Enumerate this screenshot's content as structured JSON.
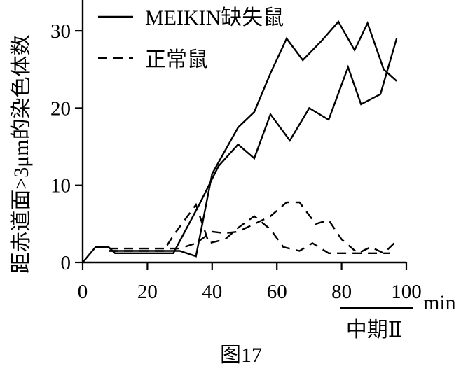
{
  "chart_data": {
    "type": "line",
    "ylabel": "距赤道面>3μm的染色体数",
    "xunit": "min",
    "xlim": [
      0,
      100
    ],
    "ylim": [
      0,
      34
    ],
    "xticks": [
      0,
      20,
      40,
      60,
      80,
      100
    ],
    "yticks": [
      0,
      10,
      20,
      30
    ],
    "legend": {
      "position": "top-left",
      "entries": [
        {
          "label": "MEIKIN缺失鼠",
          "style": "solid"
        },
        {
          "label": "正常鼠",
          "style": "dashed"
        }
      ]
    },
    "phase_bracket": {
      "label": "中期Ⅱ",
      "x_range": [
        80,
        100
      ]
    },
    "caption": "图17",
    "series": [
      {
        "group": "MEIKIN缺失鼠",
        "style": "solid",
        "x": [
          0,
          4,
          8,
          10,
          16,
          22,
          28,
          36,
          42,
          48,
          53,
          58,
          64,
          70,
          76,
          82,
          86,
          92,
          97
        ],
        "y": [
          0,
          2,
          2,
          1.2,
          1.2,
          1.2,
          1.2,
          7.5,
          12.5,
          15.3,
          13.5,
          19.2,
          15.8,
          20.0,
          18.5,
          25.3,
          20.5,
          21.8,
          29.0
        ]
      },
      {
        "group": "MEIKIN缺失鼠",
        "style": "solid",
        "x": [
          8,
          16,
          22,
          30,
          35,
          40,
          48,
          53,
          58,
          63,
          68,
          74,
          79,
          84,
          88,
          93,
          97
        ],
        "y": [
          1.5,
          1.5,
          1.5,
          1.5,
          0.8,
          11.5,
          17.5,
          19.5,
          24.5,
          29.0,
          26.2,
          28.8,
          31.2,
          27.5,
          31.0,
          25.0,
          23.5
        ]
      },
      {
        "group": "正常鼠",
        "style": "dashed",
        "x": [
          8,
          16,
          25,
          28,
          35,
          39,
          44,
          48,
          53,
          58,
          62,
          67,
          71,
          76,
          84,
          90,
          95
        ],
        "y": [
          1.5,
          1.5,
          1.5,
          3.5,
          7.5,
          2.5,
          3.0,
          4.5,
          6.0,
          4.3,
          2.0,
          1.5,
          2.5,
          1.2,
          1.2,
          1.2,
          1.2
        ]
      },
      {
        "group": "正常鼠",
        "style": "dashed",
        "x": [
          8,
          16,
          25,
          30,
          35,
          40,
          44,
          48,
          53,
          58,
          63,
          67,
          72,
          76,
          80,
          85,
          89,
          93,
          97
        ],
        "y": [
          1.8,
          1.8,
          1.8,
          1.8,
          2.5,
          4.0,
          3.8,
          4.0,
          5.0,
          6.0,
          7.8,
          7.8,
          5.0,
          5.5,
          3.0,
          1.2,
          2.0,
          1.2,
          2.8
        ]
      }
    ]
  }
}
